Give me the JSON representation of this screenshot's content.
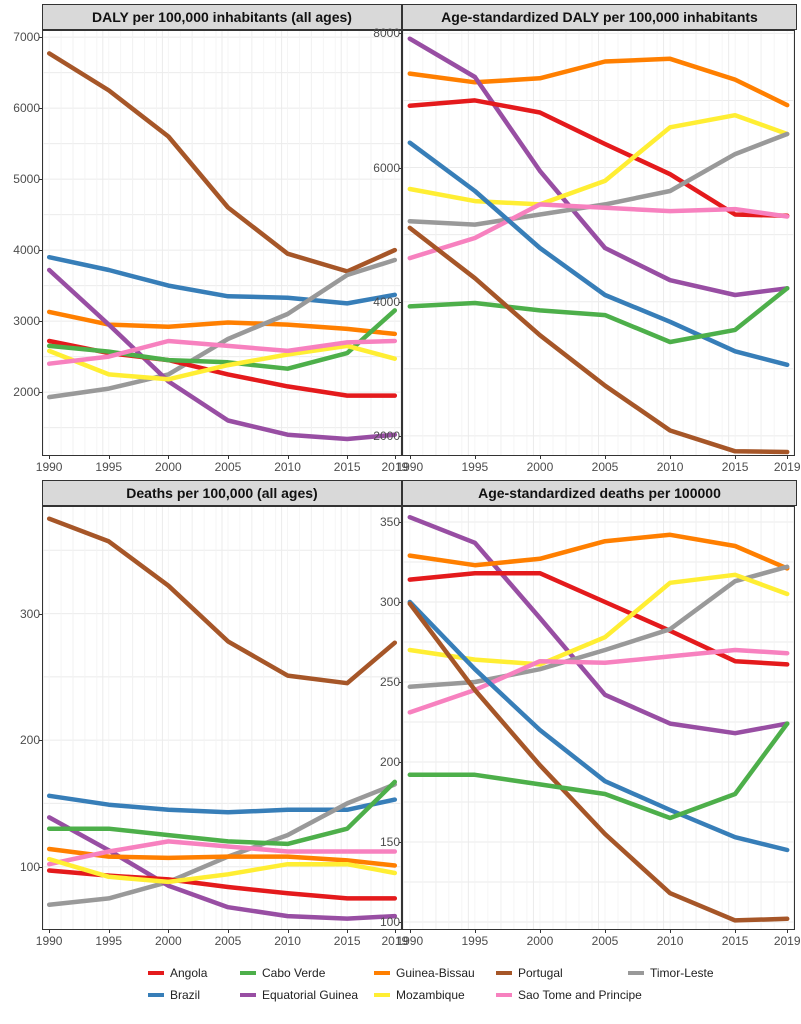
{
  "colors": {
    "Angola": "#e41a1c",
    "Brazil": "#377eb8",
    "Cabo Verde": "#4daf4a",
    "Equatorial Guinea": "#984ea3",
    "Guinea-Bissau": "#ff7f00",
    "Mozambique": "#ffee33",
    "Portugal": "#a65628",
    "Sao Tome and Principe": "#f781bf",
    "Timor-Leste": "#999999"
  },
  "legend": {
    "row1": [
      "Angola",
      "Cabo Verde",
      "Guinea-Bissau",
      "Portugal",
      "Timor-Leste"
    ],
    "row2": [
      "Brazil",
      "Equatorial Guinea",
      "Mozambique",
      "Sao Tome and Principe"
    ]
  },
  "chart_data": [
    {
      "type": "line",
      "title": "DALY per 100,000 inhabitants (all ages)",
      "xlabel": "",
      "ylabel": "",
      "xlim": [
        1989.4,
        2019.6
      ],
      "ylim": [
        1100,
        7100
      ],
      "xticks": [
        1990,
        1995,
        2000,
        2005,
        2010,
        2015,
        2019
      ],
      "yticks": [
        2000,
        3000,
        4000,
        5000,
        6000,
        7000
      ],
      "grid": true,
      "x": [
        1990,
        1995,
        2000,
        2005,
        2010,
        2015,
        2019
      ],
      "series": [
        {
          "name": "Portugal",
          "values": [
            6770,
            6250,
            5600,
            4600,
            3950,
            3700,
            4000
          ]
        },
        {
          "name": "Brazil",
          "values": [
            3900,
            3720,
            3500,
            3350,
            3330,
            3250,
            3370
          ]
        },
        {
          "name": "Guinea-Bissau",
          "values": [
            3130,
            2950,
            2920,
            2980,
            2950,
            2890,
            2820
          ]
        },
        {
          "name": "Timor-Leste",
          "values": [
            1930,
            2050,
            2250,
            2750,
            3100,
            3650,
            3860
          ]
        },
        {
          "name": "Equatorial Guinea",
          "values": [
            3720,
            2950,
            2150,
            1600,
            1400,
            1340,
            1400
          ]
        },
        {
          "name": "Angola",
          "values": [
            2720,
            2550,
            2450,
            2250,
            2080,
            1950,
            1950
          ]
        },
        {
          "name": "Cabo Verde",
          "values": [
            2650,
            2570,
            2450,
            2420,
            2330,
            2550,
            3150
          ]
        },
        {
          "name": "Mozambique",
          "values": [
            2580,
            2250,
            2180,
            2380,
            2530,
            2650,
            2470
          ]
        },
        {
          "name": "Sao Tome and Principe",
          "values": [
            2400,
            2500,
            2720,
            2650,
            2580,
            2700,
            2720
          ]
        }
      ]
    },
    {
      "type": "line",
      "title": "Age-standardized DALY per 100,000 inhabitants",
      "xlabel": "",
      "ylabel": "",
      "xlim": [
        1989.4,
        2019.6
      ],
      "ylim": [
        1700,
        8050
      ],
      "xticks": [
        1990,
        1995,
        2000,
        2005,
        2010,
        2015,
        2019
      ],
      "yticks": [
        2000,
        4000,
        6000,
        8000
      ],
      "grid": true,
      "x": [
        1990,
        1995,
        2000,
        2005,
        2010,
        2015,
        2019
      ],
      "series": [
        {
          "name": "Guinea-Bissau",
          "values": [
            7400,
            7270,
            7330,
            7580,
            7620,
            7310,
            6930
          ]
        },
        {
          "name": "Equatorial Guinea",
          "values": [
            7920,
            7350,
            5950,
            4800,
            4320,
            4100,
            4200
          ]
        },
        {
          "name": "Angola",
          "values": [
            6920,
            7000,
            6820,
            6350,
            5900,
            5300,
            5280
          ]
        },
        {
          "name": "Mozambique",
          "values": [
            5680,
            5500,
            5450,
            5800,
            6600,
            6780,
            6500
          ]
        },
        {
          "name": "Timor-Leste",
          "values": [
            5200,
            5150,
            5300,
            5450,
            5650,
            6200,
            6500
          ]
        },
        {
          "name": "Sao Tome and Principe",
          "values": [
            4650,
            4950,
            5450,
            5400,
            5350,
            5380,
            5270
          ]
        },
        {
          "name": "Brazil",
          "values": [
            6370,
            5650,
            4800,
            4100,
            3700,
            3260,
            3060
          ]
        },
        {
          "name": "Cabo Verde",
          "values": [
            3930,
            3980,
            3870,
            3800,
            3400,
            3580,
            4200
          ]
        },
        {
          "name": "Portugal",
          "values": [
            5100,
            4350,
            3500,
            2750,
            2080,
            1770,
            1760
          ]
        }
      ]
    },
    {
      "type": "line",
      "title": "Deaths per 100,000 (all ages)",
      "xlabel": "",
      "ylabel": "",
      "xlim": [
        1989.4,
        2019.6
      ],
      "ylim": [
        50,
        385
      ],
      "xticks": [
        1990,
        1995,
        2000,
        2005,
        2010,
        2015,
        2019
      ],
      "yticks": [
        100,
        200,
        300
      ],
      "grid": true,
      "x": [
        1990,
        1995,
        2000,
        2005,
        2010,
        2015,
        2019
      ],
      "series": [
        {
          "name": "Portugal",
          "values": [
            375,
            357,
            322,
            278,
            251,
            245,
            277
          ]
        },
        {
          "name": "Brazil",
          "values": [
            156,
            149,
            145,
            143,
            145,
            145,
            153
          ]
        },
        {
          "name": "Timor-Leste",
          "values": [
            70,
            75,
            88,
            108,
            125,
            150,
            165
          ]
        },
        {
          "name": "Equatorial Guinea",
          "values": [
            139,
            113,
            85,
            68,
            61,
            59,
            61
          ]
        },
        {
          "name": "Cabo Verde",
          "values": [
            130,
            130,
            125,
            120,
            118,
            130,
            167
          ]
        },
        {
          "name": "Guinea-Bissau",
          "values": [
            114,
            108,
            107,
            108,
            108,
            105,
            101
          ]
        },
        {
          "name": "Sao Tome and Principe",
          "values": [
            102,
            112,
            120,
            116,
            112,
            112,
            112
          ]
        },
        {
          "name": "Angola",
          "values": [
            97,
            93,
            90,
            84,
            79,
            75,
            75
          ]
        },
        {
          "name": "Mozambique",
          "values": [
            106,
            92,
            88,
            94,
            102,
            102,
            95
          ]
        }
      ]
    },
    {
      "type": "line",
      "title": "Age-standardized deaths per 100000",
      "xlabel": "",
      "ylabel": "",
      "xlim": [
        1989.4,
        2019.6
      ],
      "ylim": [
        95,
        360
      ],
      "xticks": [
        1990,
        1995,
        2000,
        2005,
        2010,
        2015,
        2019
      ],
      "yticks": [
        100,
        150,
        200,
        250,
        300,
        350
      ],
      "grid": true,
      "x": [
        1990,
        1995,
        2000,
        2005,
        2010,
        2015,
        2019
      ],
      "series": [
        {
          "name": "Equatorial Guinea",
          "values": [
            353,
            337,
            290,
            242,
            224,
            218,
            224
          ]
        },
        {
          "name": "Guinea-Bissau",
          "values": [
            329,
            323,
            327,
            338,
            342,
            335,
            321
          ]
        },
        {
          "name": "Angola",
          "values": [
            314,
            318,
            318,
            300,
            282,
            263,
            261
          ]
        },
        {
          "name": "Timor-Leste",
          "values": [
            247,
            250,
            258,
            270,
            283,
            313,
            322
          ]
        },
        {
          "name": "Mozambique",
          "values": [
            270,
            264,
            261,
            278,
            312,
            317,
            305
          ]
        },
        {
          "name": "Sao Tome and Principe",
          "values": [
            231,
            245,
            263,
            262,
            266,
            270,
            268
          ]
        },
        {
          "name": "Brazil",
          "values": [
            300,
            258,
            220,
            188,
            170,
            153,
            145
          ]
        },
        {
          "name": "Portugal",
          "values": [
            299,
            245,
            198,
            155,
            118,
            101,
            102
          ]
        },
        {
          "name": "Cabo Verde",
          "values": [
            192,
            192,
            186,
            180,
            165,
            180,
            224
          ]
        }
      ]
    }
  ]
}
